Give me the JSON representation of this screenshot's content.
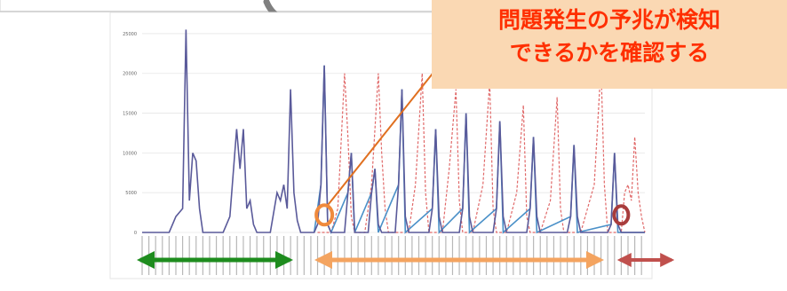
{
  "callout": {
    "line1": "問題発生の予兆が検知",
    "line2": "できるかを確認する"
  },
  "colors": {
    "actual": "#5a5a9a",
    "predicted": "#e06868",
    "prediction_fit": "#4a90c8",
    "callout_bg": "#fad8b3",
    "callout_text": "#ff2f00",
    "connector": "#e07020",
    "train_arrow": "#1e8c1e",
    "eval_arrow": "#f4a460",
    "future_arrow": "#c0504d",
    "circle_start": "#f08a3c",
    "circle_end": "#a83c3c",
    "curved_arrow": "#808080"
  },
  "chart_data": {
    "type": "line",
    "ylim": [
      0,
      27000
    ],
    "yticks": [
      0,
      5000,
      10000,
      15000,
      20000,
      25000
    ],
    "ytick_labels": [
      "0",
      "5000",
      "10000",
      "15000",
      "20000",
      "25000"
    ],
    "x_count": 150,
    "actual": [
      [
        0,
        0
      ],
      [
        8,
        0
      ],
      [
        10,
        2000
      ],
      [
        12,
        3000
      ],
      [
        13,
        25500
      ],
      [
        14,
        4000
      ],
      [
        15,
        10000
      ],
      [
        16,
        9000
      ],
      [
        17,
        3000
      ],
      [
        18,
        0
      ],
      [
        24,
        0
      ],
      [
        26,
        2000
      ],
      [
        28,
        13000
      ],
      [
        29,
        8000
      ],
      [
        30,
        13000
      ],
      [
        31,
        3000
      ],
      [
        32,
        4000
      ],
      [
        33,
        1000
      ],
      [
        34,
        0
      ],
      [
        38,
        0
      ],
      [
        40,
        5000
      ],
      [
        41,
        4000
      ],
      [
        42,
        6000
      ],
      [
        43,
        3000
      ],
      [
        44,
        18000
      ],
      [
        45,
        5000
      ],
      [
        46,
        1500
      ],
      [
        47,
        0
      ],
      [
        51,
        0
      ],
      [
        52,
        1000
      ],
      [
        53,
        6000
      ],
      [
        54,
        21000
      ],
      [
        55,
        1000
      ],
      [
        56,
        0
      ],
      [
        60,
        0
      ],
      [
        61,
        5000
      ],
      [
        62,
        10000
      ],
      [
        63,
        0
      ],
      [
        67,
        0
      ],
      [
        68,
        5000
      ],
      [
        69,
        8000
      ],
      [
        70,
        1000
      ],
      [
        71,
        0
      ],
      [
        75,
        0
      ],
      [
        76,
        6000
      ],
      [
        77,
        18000
      ],
      [
        78,
        2000
      ],
      [
        79,
        0
      ],
      [
        85,
        0
      ],
      [
        86,
        3000
      ],
      [
        87,
        13000
      ],
      [
        88,
        2000
      ],
      [
        89,
        0
      ],
      [
        94,
        0
      ],
      [
        95,
        3000
      ],
      [
        96,
        15000
      ],
      [
        97,
        2000
      ],
      [
        98,
        0
      ],
      [
        104,
        0
      ],
      [
        105,
        3000
      ],
      [
        106,
        14000
      ],
      [
        107,
        2000
      ],
      [
        108,
        0
      ],
      [
        114,
        0
      ],
      [
        115,
        3000
      ],
      [
        116,
        12000
      ],
      [
        117,
        2000
      ],
      [
        118,
        0
      ],
      [
        126,
        0
      ],
      [
        127,
        2000
      ],
      [
        128,
        11000
      ],
      [
        129,
        2000
      ],
      [
        130,
        0
      ],
      [
        138,
        0
      ],
      [
        139,
        1000
      ],
      [
        140,
        10000
      ],
      [
        141,
        1000
      ],
      [
        142,
        0
      ],
      [
        149,
        0
      ]
    ],
    "prediction_fit": [
      [
        51,
        0
      ],
      [
        53,
        6000
      ],
      [
        54,
        21000
      ],
      [
        55,
        1000
      ],
      [
        56,
        0
      ],
      [
        61,
        5000
      ],
      [
        62,
        10000
      ],
      [
        63,
        0
      ],
      [
        68,
        5000
      ],
      [
        69,
        8000
      ],
      [
        70,
        0
      ],
      [
        76,
        6000
      ],
      [
        77,
        18000
      ],
      [
        78,
        0
      ],
      [
        86,
        3000
      ],
      [
        87,
        13000
      ],
      [
        88,
        0
      ],
      [
        95,
        3000
      ],
      [
        96,
        15000
      ],
      [
        97,
        0
      ],
      [
        105,
        3000
      ],
      [
        106,
        14000
      ],
      [
        107,
        0
      ],
      [
        115,
        3000
      ],
      [
        116,
        12000
      ],
      [
        117,
        0
      ],
      [
        127,
        2000
      ],
      [
        128,
        11000
      ],
      [
        129,
        0
      ],
      [
        139,
        1000
      ],
      [
        140,
        10000
      ],
      [
        141,
        0
      ],
      [
        149,
        0
      ]
    ],
    "predicted": [
      [
        52,
        0
      ],
      [
        56,
        0
      ],
      [
        58,
        3000
      ],
      [
        60,
        20000
      ],
      [
        61,
        12000
      ],
      [
        62,
        2000
      ],
      [
        63,
        0
      ],
      [
        66,
        0
      ],
      [
        68,
        6000
      ],
      [
        70,
        20000
      ],
      [
        71,
        10000
      ],
      [
        72,
        3000
      ],
      [
        73,
        0
      ],
      [
        79,
        0
      ],
      [
        81,
        6000
      ],
      [
        83,
        20000
      ],
      [
        84,
        5000
      ],
      [
        85,
        0
      ],
      [
        89,
        0
      ],
      [
        91,
        8000
      ],
      [
        93,
        18000
      ],
      [
        94,
        4000
      ],
      [
        95,
        0
      ],
      [
        98,
        0
      ],
      [
        101,
        6000
      ],
      [
        103,
        19000
      ],
      [
        104,
        3000
      ],
      [
        105,
        0
      ],
      [
        108,
        0
      ],
      [
        111,
        5000
      ],
      [
        113,
        16000
      ],
      [
        114,
        2000
      ],
      [
        115,
        0
      ],
      [
        118,
        0
      ],
      [
        121,
        4000
      ],
      [
        123,
        17000
      ],
      [
        124,
        3000
      ],
      [
        125,
        0
      ],
      [
        130,
        0
      ],
      [
        134,
        6000
      ],
      [
        136,
        21000
      ],
      [
        137,
        6000
      ],
      [
        138,
        0
      ],
      [
        142,
        0
      ],
      [
        143,
        5000
      ],
      [
        144,
        6000
      ],
      [
        145,
        4000
      ],
      [
        146,
        12000
      ],
      [
        147,
        5000
      ],
      [
        148,
        2000
      ],
      [
        149,
        0
      ]
    ],
    "annotations": {
      "eval_start_x": 54,
      "eval_end_x": 142,
      "marker_start_y": 2200,
      "marker_end_y": 2200
    }
  }
}
